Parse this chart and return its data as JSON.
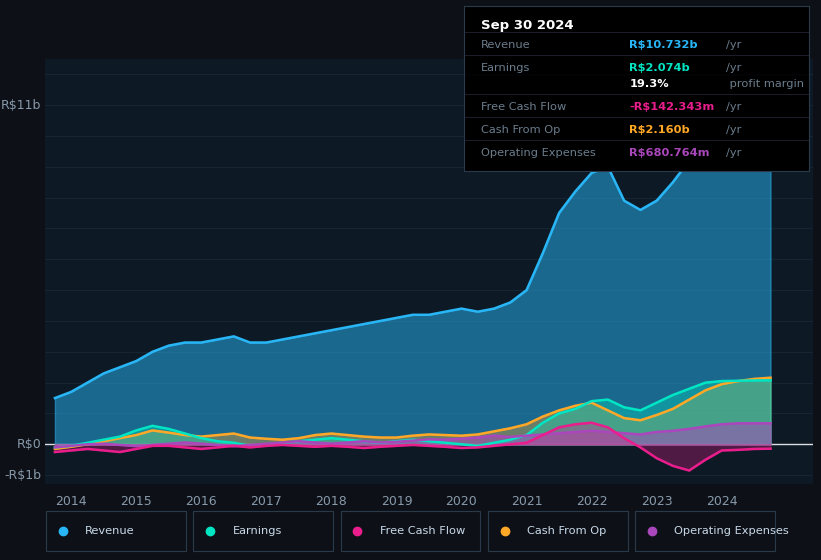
{
  "bg_color": "#0d1117",
  "plot_bg_color": "#0d1a26",
  "grid_color": "#1a2a3a",
  "text_color": "#8899aa",
  "ylim": [
    -1.3,
    12.5
  ],
  "xlim_start": 2013.6,
  "xlim_end": 2025.4,
  "x_ticks": [
    2014,
    2015,
    2016,
    2017,
    2018,
    2019,
    2020,
    2021,
    2022,
    2023,
    2024
  ],
  "y_labels": [
    {
      "val": 11,
      "label": "R$11b"
    },
    {
      "val": 0,
      "label": "R$0"
    },
    {
      "val": -1,
      "label": "-R$1b"
    }
  ],
  "series": {
    "Revenue": {
      "color": "#29b6f6",
      "fill": true,
      "fill_alpha": 0.5,
      "lw": 1.8,
      "zorder": 2,
      "x": [
        2013.75,
        2014.0,
        2014.25,
        2014.5,
        2014.75,
        2015.0,
        2015.25,
        2015.5,
        2015.75,
        2016.0,
        2016.25,
        2016.5,
        2016.75,
        2017.0,
        2017.25,
        2017.5,
        2017.75,
        2018.0,
        2018.25,
        2018.5,
        2018.75,
        2019.0,
        2019.25,
        2019.5,
        2019.75,
        2020.0,
        2020.25,
        2020.5,
        2020.75,
        2021.0,
        2021.25,
        2021.5,
        2021.75,
        2022.0,
        2022.25,
        2022.5,
        2022.75,
        2023.0,
        2023.25,
        2023.5,
        2023.75,
        2024.0,
        2024.25,
        2024.5,
        2024.75
      ],
      "y": [
        1.5,
        1.7,
        2.0,
        2.3,
        2.5,
        2.7,
        3.0,
        3.2,
        3.3,
        3.3,
        3.4,
        3.5,
        3.3,
        3.3,
        3.4,
        3.5,
        3.6,
        3.7,
        3.8,
        3.9,
        4.0,
        4.1,
        4.2,
        4.2,
        4.3,
        4.4,
        4.3,
        4.4,
        4.6,
        5.0,
        6.2,
        7.5,
        8.2,
        8.8,
        9.0,
        7.9,
        7.6,
        7.9,
        8.5,
        9.2,
        9.8,
        10.2,
        10.5,
        10.7,
        10.732
      ]
    },
    "Earnings": {
      "color": "#00e5c3",
      "fill": true,
      "fill_alpha": 0.35,
      "lw": 1.8,
      "zorder": 4,
      "x": [
        2013.75,
        2014.0,
        2014.25,
        2014.5,
        2014.75,
        2015.0,
        2015.25,
        2015.5,
        2015.75,
        2016.0,
        2016.25,
        2016.5,
        2016.75,
        2017.0,
        2017.25,
        2017.5,
        2017.75,
        2018.0,
        2018.25,
        2018.5,
        2018.75,
        2019.0,
        2019.25,
        2019.5,
        2019.75,
        2020.0,
        2020.25,
        2020.5,
        2020.75,
        2021.0,
        2021.25,
        2021.5,
        2021.75,
        2022.0,
        2022.25,
        2022.5,
        2022.75,
        2023.0,
        2023.25,
        2023.5,
        2023.75,
        2024.0,
        2024.25,
        2024.5,
        2024.75
      ],
      "y": [
        -0.1,
        -0.05,
        0.05,
        0.15,
        0.25,
        0.45,
        0.6,
        0.5,
        0.35,
        0.2,
        0.1,
        0.05,
        -0.05,
        0.0,
        0.05,
        0.1,
        0.15,
        0.2,
        0.15,
        0.1,
        0.05,
        0.1,
        0.15,
        0.1,
        0.05,
        0.0,
        -0.05,
        0.05,
        0.15,
        0.3,
        0.7,
        1.0,
        1.15,
        1.4,
        1.45,
        1.2,
        1.1,
        1.35,
        1.6,
        1.8,
        2.0,
        2.05,
        2.06,
        2.07,
        2.074
      ]
    },
    "Free Cash Flow": {
      "color": "#e91e8c",
      "fill": true,
      "fill_alpha": 0.3,
      "lw": 1.8,
      "zorder": 6,
      "x": [
        2013.75,
        2014.0,
        2014.25,
        2014.5,
        2014.75,
        2015.0,
        2015.25,
        2015.5,
        2015.75,
        2016.0,
        2016.25,
        2016.5,
        2016.75,
        2017.0,
        2017.25,
        2017.5,
        2017.75,
        2018.0,
        2018.25,
        2018.5,
        2018.75,
        2019.0,
        2019.25,
        2019.5,
        2019.75,
        2020.0,
        2020.25,
        2020.5,
        2020.75,
        2021.0,
        2021.25,
        2021.5,
        2021.75,
        2022.0,
        2022.25,
        2022.5,
        2022.75,
        2023.0,
        2023.25,
        2023.5,
        2023.75,
        2024.0,
        2024.25,
        2024.5,
        2024.75
      ],
      "y": [
        -0.25,
        -0.2,
        -0.15,
        -0.2,
        -0.25,
        -0.15,
        -0.05,
        -0.05,
        -0.1,
        -0.15,
        -0.1,
        -0.05,
        -0.1,
        -0.05,
        -0.02,
        -0.05,
        -0.08,
        -0.05,
        -0.08,
        -0.12,
        -0.08,
        -0.05,
        -0.02,
        -0.05,
        -0.08,
        -0.12,
        -0.1,
        -0.05,
        0.0,
        0.05,
        0.3,
        0.55,
        0.65,
        0.7,
        0.55,
        0.2,
        -0.1,
        -0.45,
        -0.7,
        -0.85,
        -0.5,
        -0.2,
        -0.18,
        -0.15,
        -0.142
      ]
    },
    "Cash From Op": {
      "color": "#ffa726",
      "fill": true,
      "fill_alpha": 0.35,
      "lw": 1.8,
      "zorder": 3,
      "x": [
        2013.75,
        2014.0,
        2014.25,
        2014.5,
        2014.75,
        2015.0,
        2015.25,
        2015.5,
        2015.75,
        2016.0,
        2016.25,
        2016.5,
        2016.75,
        2017.0,
        2017.25,
        2017.5,
        2017.75,
        2018.0,
        2018.25,
        2018.5,
        2018.75,
        2019.0,
        2019.25,
        2019.5,
        2019.75,
        2020.0,
        2020.25,
        2020.5,
        2020.75,
        2021.0,
        2021.25,
        2021.5,
        2021.75,
        2022.0,
        2022.25,
        2022.5,
        2022.75,
        2023.0,
        2023.25,
        2023.5,
        2023.75,
        2024.0,
        2024.25,
        2024.5,
        2024.75
      ],
      "y": [
        -0.15,
        -0.08,
        0.0,
        0.1,
        0.2,
        0.3,
        0.45,
        0.38,
        0.3,
        0.25,
        0.3,
        0.35,
        0.22,
        0.18,
        0.15,
        0.2,
        0.3,
        0.35,
        0.3,
        0.25,
        0.22,
        0.22,
        0.28,
        0.32,
        0.3,
        0.28,
        0.32,
        0.42,
        0.52,
        0.65,
        0.9,
        1.1,
        1.25,
        1.35,
        1.1,
        0.85,
        0.78,
        0.95,
        1.15,
        1.45,
        1.75,
        1.95,
        2.05,
        2.12,
        2.16
      ]
    },
    "Operating Expenses": {
      "color": "#ab47bc",
      "fill": true,
      "fill_alpha": 0.5,
      "lw": 1.8,
      "zorder": 5,
      "x": [
        2013.75,
        2014.0,
        2014.25,
        2014.5,
        2014.75,
        2015.0,
        2015.25,
        2015.5,
        2015.75,
        2016.0,
        2016.25,
        2016.5,
        2016.75,
        2017.0,
        2017.25,
        2017.5,
        2017.75,
        2018.0,
        2018.25,
        2018.5,
        2018.75,
        2019.0,
        2019.25,
        2019.5,
        2019.75,
        2020.0,
        2020.25,
        2020.5,
        2020.75,
        2021.0,
        2021.25,
        2021.5,
        2021.75,
        2022.0,
        2022.25,
        2022.5,
        2022.75,
        2023.0,
        2023.25,
        2023.5,
        2023.75,
        2024.0,
        2024.25,
        2024.5,
        2024.75
      ],
      "y": [
        -0.1,
        -0.05,
        0.0,
        0.02,
        -0.02,
        -0.06,
        -0.02,
        0.02,
        0.06,
        0.02,
        -0.02,
        -0.06,
        -0.02,
        0.02,
        0.06,
        0.1,
        0.06,
        0.02,
        0.06,
        0.1,
        0.06,
        0.08,
        0.12,
        0.16,
        0.15,
        0.18,
        0.22,
        0.28,
        0.24,
        0.28,
        0.32,
        0.36,
        0.4,
        0.44,
        0.4,
        0.36,
        0.32,
        0.4,
        0.44,
        0.5,
        0.58,
        0.65,
        0.68,
        0.68,
        0.68
      ]
    }
  },
  "tooltip": {
    "date": "Sep 30 2024",
    "rows": [
      {
        "label": "Revenue",
        "value": "R$10.732b",
        "unit": "/yr",
        "color": "#29b6f6"
      },
      {
        "label": "Earnings",
        "value": "R$2.074b",
        "unit": "/yr",
        "color": "#00e5c3"
      },
      {
        "label": "",
        "value": "19.3%",
        "suffix": " profit margin",
        "color": "#ffffff"
      },
      {
        "label": "Free Cash Flow",
        "value": "-R$142.343m",
        "unit": "/yr",
        "color": "#e91e8c"
      },
      {
        "label": "Cash From Op",
        "value": "R$2.160b",
        "unit": "/yr",
        "color": "#ffa726"
      },
      {
        "label": "Operating Expenses",
        "value": "R$680.764m",
        "unit": "/yr",
        "color": "#ab47bc"
      }
    ]
  },
  "legend": [
    {
      "label": "Revenue",
      "color": "#29b6f6"
    },
    {
      "label": "Earnings",
      "color": "#00e5c3"
    },
    {
      "label": "Free Cash Flow",
      "color": "#e91e8c"
    },
    {
      "label": "Cash From Op",
      "color": "#ffa726"
    },
    {
      "label": "Operating Expenses",
      "color": "#ab47bc"
    }
  ]
}
